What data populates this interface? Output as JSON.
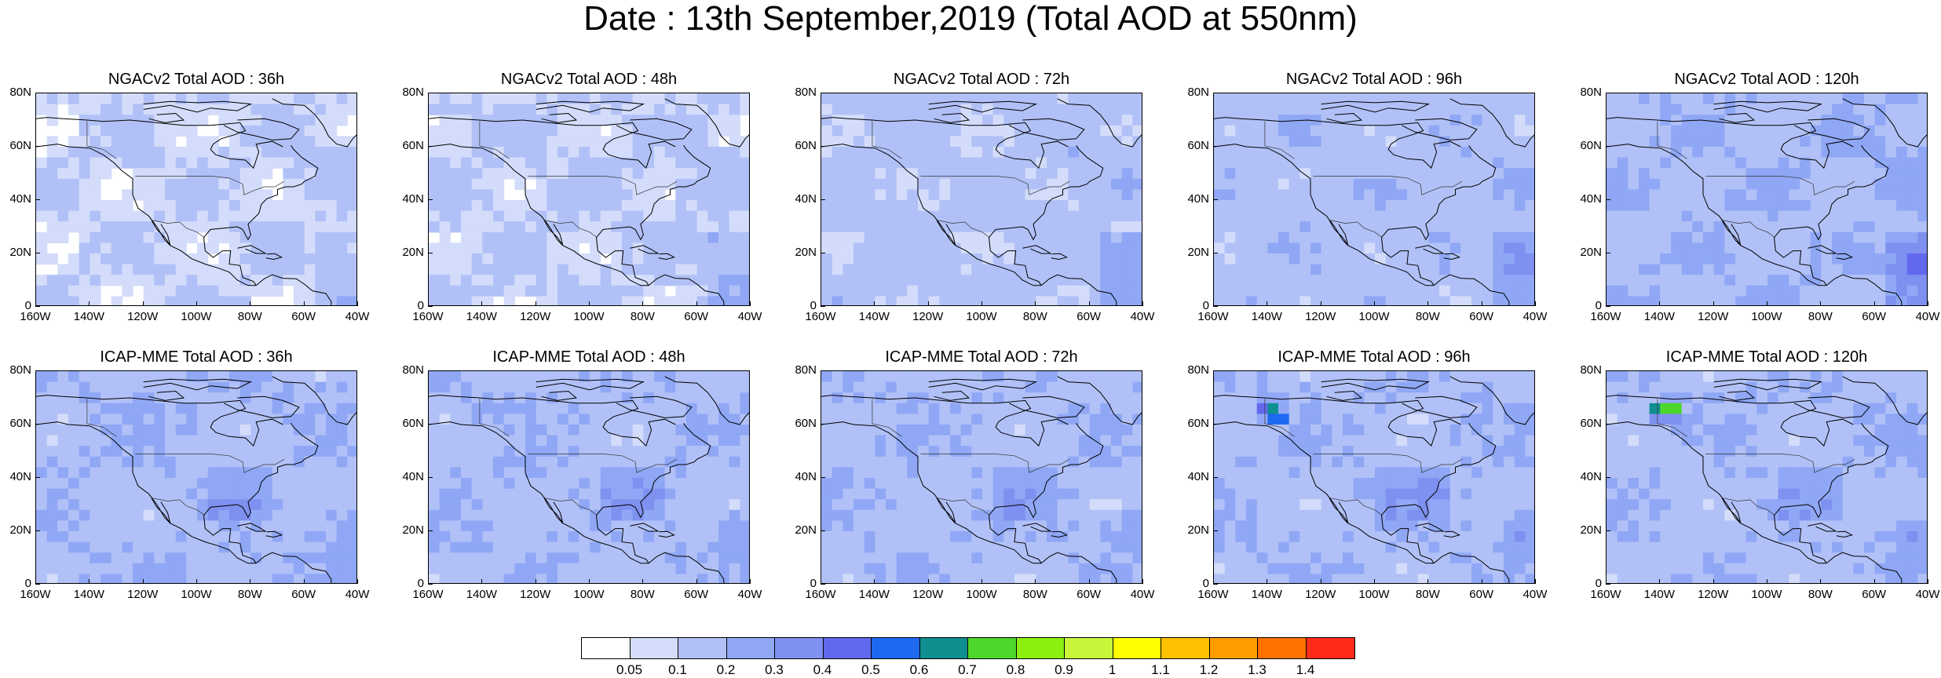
{
  "title": "Date : 13th September,2019 (Total AOD at 550nm)",
  "panels": [
    {
      "title": "NGACv2 Total AOD : 36h",
      "model": "ngac",
      "lead": 36
    },
    {
      "title": "NGACv2 Total AOD : 48h",
      "model": "ngac",
      "lead": 48
    },
    {
      "title": "NGACv2 Total AOD : 72h",
      "model": "ngac",
      "lead": 72
    },
    {
      "title": "NGACv2 Total AOD : 96h",
      "model": "ngac",
      "lead": 96
    },
    {
      "title": "NGACv2 Total AOD : 120h",
      "model": "ngac",
      "lead": 120
    },
    {
      "title": "ICAP-MME Total AOD : 36h",
      "model": "icap",
      "lead": 36
    },
    {
      "title": "ICAP-MME Total AOD : 48h",
      "model": "icap",
      "lead": 48
    },
    {
      "title": "ICAP-MME Total AOD : 72h",
      "model": "icap",
      "lead": 72
    },
    {
      "title": "ICAP-MME Total AOD : 96h",
      "model": "icap",
      "lead": 96
    },
    {
      "title": "ICAP-MME Total AOD : 120h",
      "model": "icap",
      "lead": 120
    }
  ],
  "lat_ticks": [
    "80N",
    "60N",
    "40N",
    "20N",
    "0"
  ],
  "lon_ticks": [
    "160W",
    "140W",
    "120W",
    "100W",
    "80W",
    "60W",
    "40W"
  ],
  "colorbar": {
    "labels": [
      "0.05",
      "0.1",
      "0.2",
      "0.3",
      "0.4",
      "0.5",
      "0.6",
      "0.7",
      "0.8",
      "0.9",
      "1",
      "1.1",
      "1.2",
      "1.3",
      "1.4"
    ],
    "colors": [
      "#ffffff",
      "#d3dcfa",
      "#b1c1f7",
      "#8fa7f5",
      "#7e91f0",
      "#6369ee",
      "#1f69f1",
      "#0f8f8f",
      "#4dd62b",
      "#8cef10",
      "#c7f53a",
      "#ffff00",
      "#ffc000",
      "#ff9d00",
      "#ff7200",
      "#ff2a18"
    ]
  }
}
